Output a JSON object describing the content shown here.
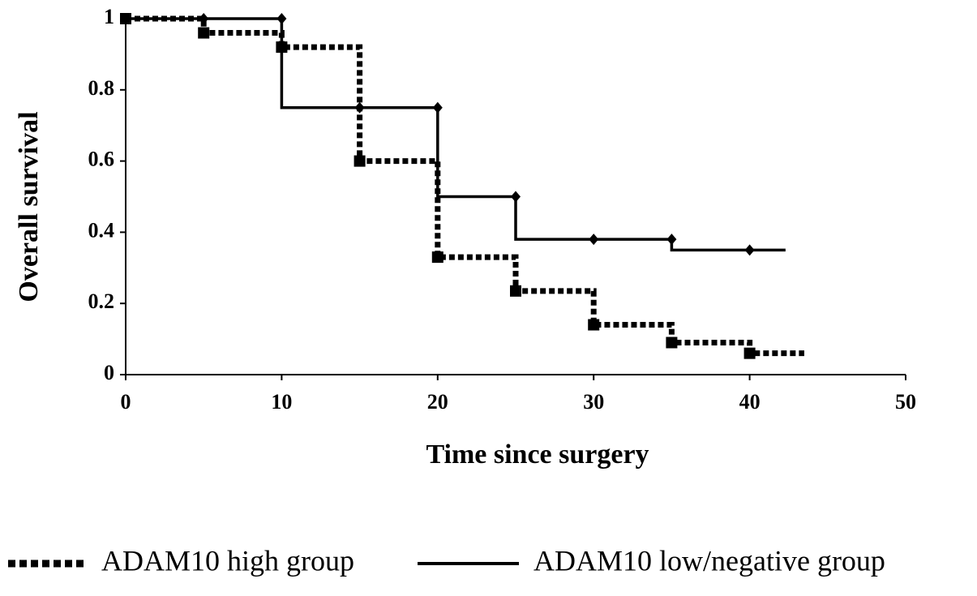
{
  "chart_data": {
    "type": "step",
    "x_label": "Time since surgery",
    "y_label": "Overall survival",
    "xlim": [
      0,
      50
    ],
    "xticks": [
      0,
      10,
      20,
      30,
      40,
      50
    ],
    "ylim": [
      0,
      1
    ],
    "yticks": [
      0,
      0.2,
      0.4,
      0.6,
      0.8,
      1
    ],
    "grid": false,
    "legend": "bottom",
    "series": [
      {
        "name": "ADAM10 high group",
        "color": "#000000",
        "dash": true,
        "step": "after",
        "marker": "square",
        "x": [
          0,
          5,
          10,
          15,
          20,
          25,
          30,
          35,
          40,
          43.5
        ],
        "values": [
          1,
          0.96,
          0.92,
          0.6,
          0.33,
          0.235,
          0.14,
          0.09,
          0.06,
          0.06
        ]
      },
      {
        "name": "ADAM10 low/negative group",
        "color": "#000000",
        "dash": false,
        "step": "before",
        "marker": "diamond",
        "x": [
          0,
          5,
          10,
          15,
          20,
          25,
          30,
          35,
          40,
          42.3
        ],
        "values": [
          1,
          1,
          1,
          0.75,
          0.75,
          0.5,
          0.38,
          0.38,
          0.35,
          0.35
        ]
      }
    ]
  }
}
